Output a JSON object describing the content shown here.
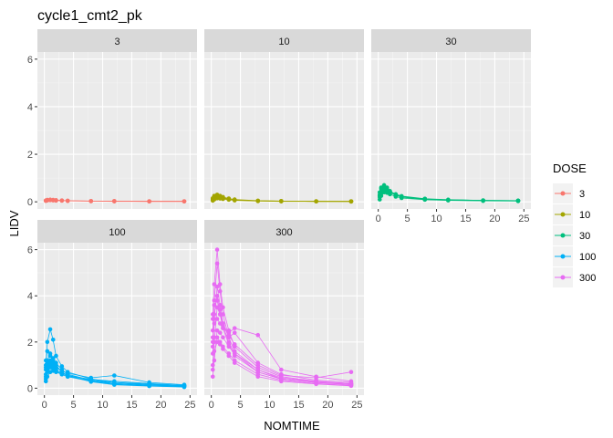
{
  "chart_data": {
    "type": "line",
    "title": "cycle1_cmt2_pk",
    "xlabel": "NOMTIME",
    "ylabel": "LIDV",
    "xlim": [
      0,
      25
    ],
    "ylim": [
      0,
      6
    ],
    "x_ticks": [
      0,
      5,
      10,
      15,
      20,
      25
    ],
    "y_ticks": [
      0,
      2,
      4,
      6
    ],
    "grid": true,
    "legend": {
      "title": "DOSE",
      "position": "right",
      "entries": [
        "3",
        "10",
        "30",
        "100",
        "300"
      ]
    },
    "colors": {
      "3": "#F8766D",
      "10": "#A3A500",
      "30": "#00BF7D",
      "100": "#00B0F6",
      "300": "#E76BF3"
    },
    "facets": [
      {
        "label": "3",
        "color": "#F8766D",
        "times": [
          0.25,
          0.5,
          1,
          1.5,
          2,
          3,
          4,
          8,
          12,
          18,
          24
        ],
        "profiles": [
          [
            0.05,
            0.07,
            0.08,
            0.07,
            0.06,
            0.05,
            0.04,
            0.03,
            0.03,
            0.02,
            0.02
          ],
          [
            0.04,
            0.06,
            0.07,
            0.06,
            0.05,
            0.05,
            0.04,
            0.03,
            0.02,
            0.02,
            0.02
          ],
          [
            0.06,
            0.08,
            0.09,
            0.08,
            0.07,
            0.06,
            0.05,
            0.03,
            0.03,
            0.02,
            0.02
          ]
        ]
      },
      {
        "label": "10",
        "color": "#A3A500",
        "times": [
          0.25,
          0.5,
          1,
          1.5,
          2,
          3,
          4,
          8,
          12,
          18,
          24
        ],
        "profiles": [
          [
            0.12,
            0.2,
            0.25,
            0.22,
            0.18,
            0.12,
            0.08,
            0.04,
            0.03,
            0.02,
            0.02
          ],
          [
            0.08,
            0.15,
            0.2,
            0.18,
            0.15,
            0.1,
            0.07,
            0.04,
            0.03,
            0.02,
            0.02
          ],
          [
            0.15,
            0.25,
            0.3,
            0.25,
            0.2,
            0.14,
            0.1,
            0.05,
            0.03,
            0.02,
            0.02
          ],
          [
            0.05,
            0.1,
            0.15,
            0.14,
            0.12,
            0.09,
            0.06,
            0.03,
            0.02,
            0.02,
            0.01
          ]
        ]
      },
      {
        "label": "30",
        "color": "#00BF7D",
        "times": [
          0.25,
          0.5,
          1,
          1.5,
          2,
          3,
          4,
          8,
          12,
          18,
          24
        ],
        "profiles": [
          [
            0.3,
            0.55,
            0.7,
            0.6,
            0.45,
            0.3,
            0.22,
            0.12,
            0.08,
            0.06,
            0.05
          ],
          [
            0.2,
            0.4,
            0.55,
            0.5,
            0.4,
            0.28,
            0.2,
            0.1,
            0.07,
            0.05,
            0.04
          ],
          [
            0.4,
            0.6,
            0.62,
            0.55,
            0.42,
            0.3,
            0.22,
            0.12,
            0.08,
            0.06,
            0.05
          ],
          [
            0.1,
            0.25,
            0.4,
            0.38,
            0.32,
            0.22,
            0.16,
            0.09,
            0.06,
            0.04,
            0.03
          ],
          [
            0.25,
            0.35,
            0.48,
            0.52,
            0.45,
            0.32,
            0.24,
            0.13,
            0.09,
            0.06,
            0.05
          ]
        ]
      },
      {
        "label": "100",
        "color": "#00B0F6",
        "times": [
          0.25,
          0.5,
          1,
          1.5,
          2,
          3,
          4,
          8,
          12,
          18,
          24
        ],
        "profiles": [
          [
            1.0,
            2.0,
            2.55,
            2.1,
            1.4,
            0.95,
            0.7,
            0.4,
            0.25,
            0.15,
            0.1
          ],
          [
            0.6,
            1.2,
            1.5,
            1.3,
            1.1,
            0.8,
            0.6,
            0.35,
            0.2,
            0.12,
            0.08
          ],
          [
            0.8,
            1.0,
            1.1,
            1.0,
            0.9,
            0.75,
            0.65,
            0.45,
            0.55,
            0.25,
            0.15
          ],
          [
            0.4,
            0.7,
            0.9,
            0.85,
            0.75,
            0.6,
            0.5,
            0.3,
            0.2,
            0.15,
            0.1
          ],
          [
            1.2,
            1.6,
            1.4,
            1.2,
            1.0,
            0.7,
            0.55,
            0.3,
            0.18,
            0.1,
            0.06
          ],
          [
            0.3,
            0.5,
            0.7,
            0.75,
            0.7,
            0.6,
            0.5,
            0.35,
            0.25,
            0.18,
            0.12
          ],
          [
            0.9,
            1.1,
            1.0,
            0.9,
            0.8,
            0.65,
            0.55,
            0.38,
            0.3,
            0.2,
            0.12
          ],
          [
            0.5,
            0.8,
            1.2,
            1.1,
            0.95,
            0.7,
            0.55,
            0.28,
            0.15,
            0.09,
            0.05
          ]
        ]
      },
      {
        "label": "300",
        "color": "#E76BF3",
        "times": [
          0.25,
          0.5,
          1,
          1.5,
          2,
          3,
          4,
          8,
          12,
          18,
          24
        ],
        "profiles": [
          [
            3.0,
            4.5,
            6.0,
            4.5,
            3.5,
            2.5,
            1.8,
            0.9,
            0.5,
            0.3,
            0.2
          ],
          [
            2.5,
            3.8,
            5.4,
            4.2,
            3.2,
            2.2,
            1.6,
            0.8,
            0.4,
            0.25,
            0.15
          ],
          [
            1.8,
            3.0,
            4.4,
            3.6,
            2.8,
            2.2,
            2.4,
            1.1,
            0.6,
            0.35,
            0.25
          ],
          [
            1.0,
            2.0,
            3.5,
            3.2,
            2.8,
            2.3,
            1.9,
            1.0,
            0.55,
            0.45,
            0.7
          ],
          [
            2.0,
            2.8,
            3.0,
            2.8,
            2.6,
            2.4,
            2.6,
            2.3,
            0.8,
            0.5,
            0.3
          ],
          [
            0.5,
            1.2,
            2.5,
            2.4,
            2.2,
            1.8,
            1.5,
            0.7,
            0.4,
            0.25,
            0.15
          ],
          [
            1.5,
            2.2,
            2.2,
            2.0,
            1.8,
            1.5,
            1.2,
            0.6,
            0.35,
            0.2,
            0.12
          ],
          [
            3.2,
            3.6,
            3.8,
            3.2,
            2.6,
            1.9,
            1.4,
            0.7,
            0.4,
            0.25,
            0.18
          ],
          [
            0.8,
            1.6,
            2.0,
            1.9,
            1.7,
            1.4,
            1.1,
            0.5,
            0.3,
            0.18,
            0.1
          ],
          [
            2.2,
            3.2,
            4.0,
            3.4,
            2.7,
            2.0,
            1.5,
            0.8,
            0.45,
            0.28,
            0.2
          ]
        ]
      }
    ]
  }
}
